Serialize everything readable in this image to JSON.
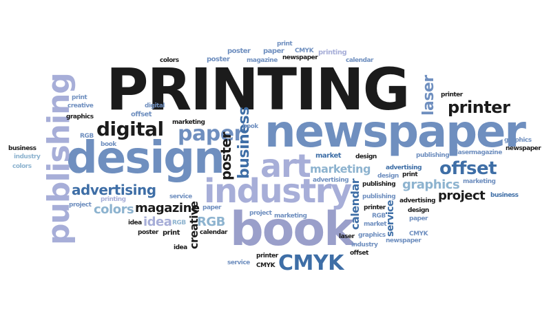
{
  "colors": {
    "background": "#ffffff",
    "black": "#1b1b1b",
    "steel_blue": "#6f8fbf",
    "lavender": "#a7aed8",
    "light_blue": "#8db3cf",
    "deep_blue": "#3e6ea6"
  },
  "words": {
    "printing_main": "PRINTING",
    "newspaper_big": "newspaper",
    "book_big": "book",
    "design_big": "design",
    "industry_big": "industry",
    "publishing_big": "publishing",
    "art_big": "art",
    "printer_top": "printer",
    "offset_mid": "offset",
    "digital_mid": "digital",
    "paper_mid": "paper",
    "cmyk_big": "CMYK",
    "laser_top": "laser",
    "magazine_mid": "magazine",
    "advertising_mid": "advertising",
    "colors_mid": "colors",
    "marketing_mid": "marketing",
    "graphics_mid": "graphics",
    "project_mid": "project",
    "idea_mid": "idea",
    "rgb_mid": "RGB",
    "business_v": "business",
    "poster_v": "poster",
    "creative_v": "creative",
    "calendar_v": "calendar",
    "service_v": "service",
    "print": "print",
    "cmyk": "CMYK",
    "newspaper": "newspaper",
    "printing": "printing",
    "poster": "poster",
    "paper": "paper",
    "magazine": "magazine",
    "calendar": "calendar",
    "colors": "colors",
    "creative": "creative",
    "offset": "offset",
    "graphics": "graphics",
    "idea": "idea",
    "book": "book",
    "business": "business",
    "industry": "industry",
    "rgb": "RGB",
    "digital": "digital",
    "art": "art",
    "market": "market",
    "design": "design",
    "advertising": "advertising",
    "publishing": "publishing",
    "laser": "laser",
    "marketing": "marketing",
    "project": "project",
    "service": "service",
    "printer": "printer"
  }
}
